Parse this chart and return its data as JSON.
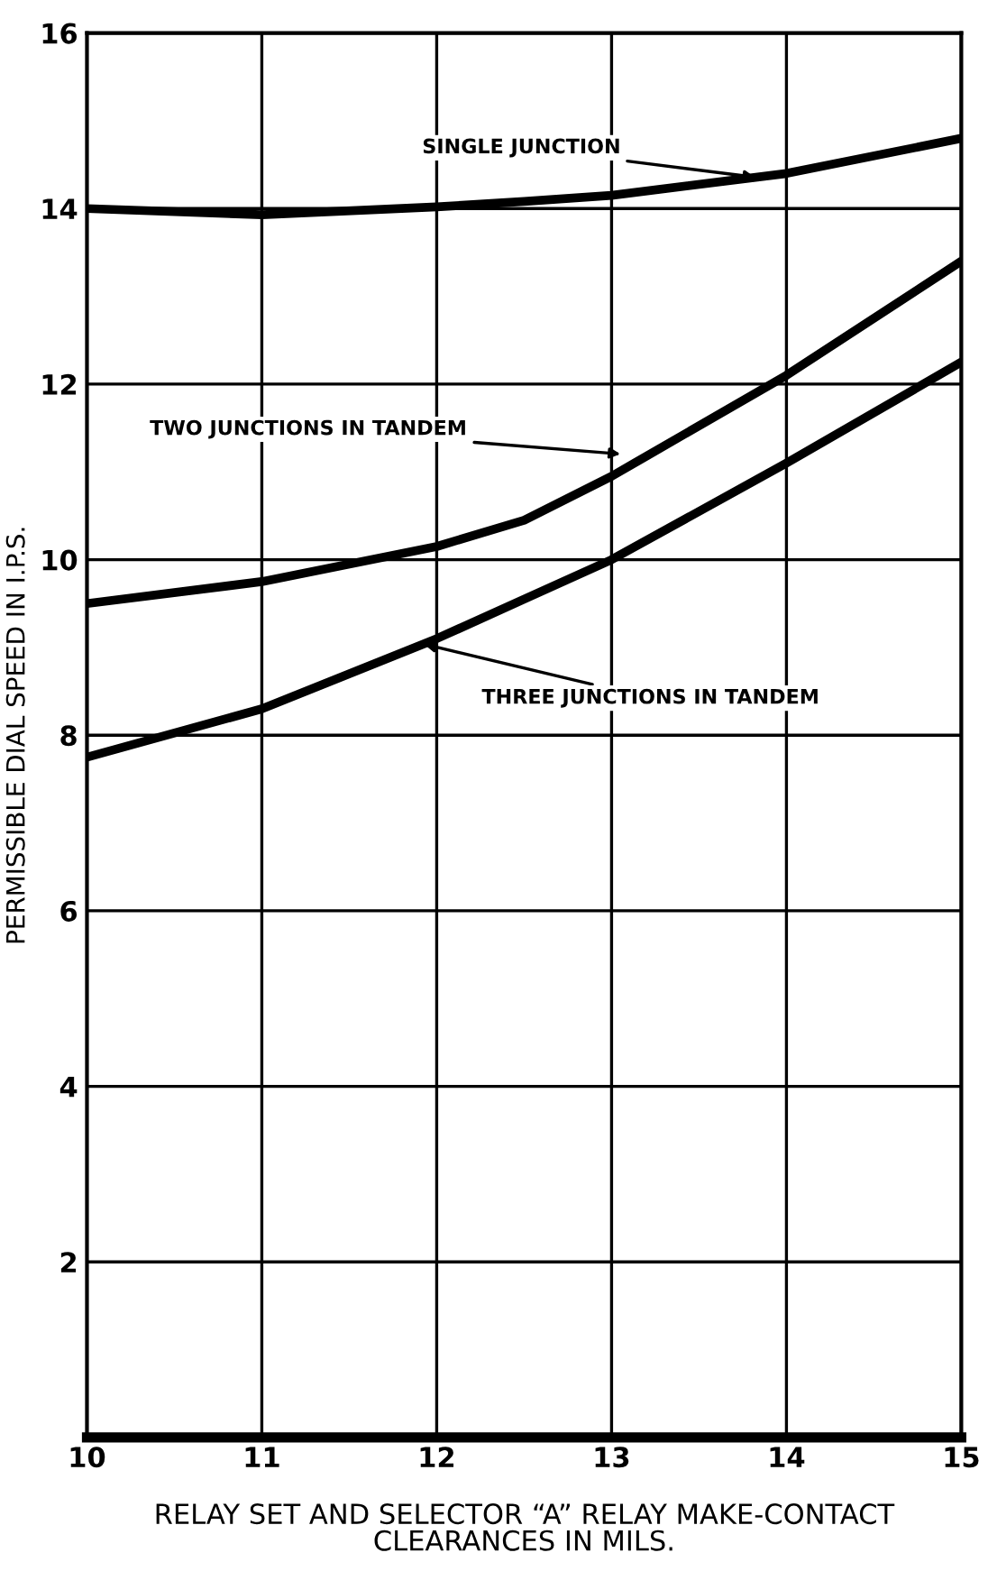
{
  "chart_data": {
    "type": "line",
    "xlabel": "RELAY SET AND SELECTOR “A” RELAY MAKE-CONTACT\nCLEARANCES IN MILS.",
    "ylabel": "PERMISSIBLE DIAL SPEED IN I.P.S.",
    "x": [
      10,
      11,
      12,
      12.5,
      13,
      14,
      15
    ],
    "series": [
      {
        "color": "#000000",
        "values": [
          14.0,
          13.93,
          14.02,
          14.08,
          14.15,
          14.4,
          14.8
        ]
      },
      {
        "color": "#000000",
        "values": [
          9.5,
          9.75,
          10.15,
          10.45,
          10.95,
          12.1,
          13.4
        ]
      },
      {
        "color": "#000000",
        "values": [
          7.75,
          8.3,
          9.1,
          9.55,
          10.0,
          11.1,
          12.25
        ]
      }
    ],
    "xlim": [
      10,
      15
    ],
    "ylim": [
      0,
      16
    ],
    "xticks": [
      10,
      11,
      12,
      13,
      14,
      15
    ],
    "yticks": [
      {
        "value": 0,
        "label": null
      },
      2,
      4,
      6,
      8,
      10,
      12,
      14,
      16
    ],
    "grid": true,
    "marker": "none",
    "line_style": "solid",
    "annotations": [
      {
        "text": "SINGLE JUNCTION",
        "x": 13.85,
        "y": 14.35
      },
      {
        "text": "TWO JUNCTIONS IN TANDEM",
        "x": 13.08,
        "y": 11.2
      },
      {
        "text": "THREE JUNCTIONS IN TANDEM",
        "x": 11.9,
        "y": 9.05
      }
    ]
  }
}
